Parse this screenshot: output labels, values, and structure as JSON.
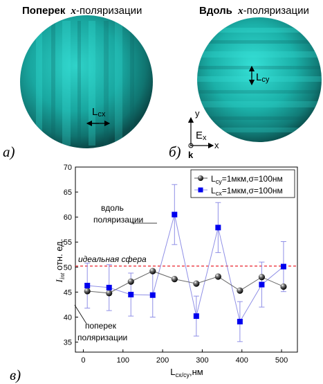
{
  "panel_a": {
    "title_bold": "Поперек",
    "title_var": "x",
    "title_rest": "-поляризации",
    "scale_label": "L",
    "scale_sub": "cx",
    "panel_label": "а)"
  },
  "panel_b": {
    "title_bold": "Вдоль",
    "title_var": "x",
    "title_rest": "-поляризации",
    "scale_label": "L",
    "scale_sub": "cy",
    "panel_label": "б)",
    "axes": {
      "y": "y",
      "x": "x",
      "k": "k",
      "E": "E",
      "E_sub": "x"
    }
  },
  "colors": {
    "sphere_dark": "#0b4a49",
    "sphere_mid": "#14908c",
    "sphere_light": "#2ee0d6",
    "series_black": "#000000",
    "series_blue": "#0000ee",
    "blue_line": "#8f8fe6",
    "ideal_line": "#e8212a"
  },
  "chart_data": {
    "type": "scatter",
    "panel_label": "в)",
    "xlabel_main": "L",
    "xlabel_sub": "cx/cy",
    "xlabel_unit": ",нм",
    "ylabel_var": "I",
    "ylabel_sub": "int",
    "ylabel_rest": " отн. ед.",
    "xlim": [
      -20,
      540
    ],
    "ylim": [
      33,
      70
    ],
    "xticks": [
      0,
      100,
      200,
      300,
      400,
      500
    ],
    "yticks": [
      35,
      40,
      45,
      50,
      55,
      60,
      65,
      70
    ],
    "grid": false,
    "legend_position": "top-right",
    "series": [
      {
        "name_main": "L",
        "name_sub": "cy",
        "name_rest": "=1мкм,σ=100нм",
        "marker": "sphere",
        "color": "#000000",
        "x": [
          10,
          65,
          120,
          175,
          230,
          285,
          340,
          395,
          450,
          505
        ],
        "y": [
          45.2,
          44.8,
          47.1,
          49.2,
          47.6,
          46.7,
          48.1,
          45.3,
          48.0,
          46.1
        ],
        "err": [
          0,
          0,
          0,
          0,
          0,
          0,
          0,
          0,
          0,
          0
        ]
      },
      {
        "name_main": "L",
        "name_sub": "cx",
        "name_rest": "=1мкм,σ=100нм",
        "marker": "square",
        "color": "#0000ee",
        "x": [
          10,
          65,
          120,
          175,
          230,
          285,
          340,
          395,
          450,
          505
        ],
        "y": [
          46.3,
          45.9,
          44.5,
          44.4,
          60.5,
          40.2,
          57.9,
          39.1,
          46.5,
          50.1
        ],
        "err": [
          4.5,
          4.6,
          4.3,
          4.4,
          6.0,
          4.0,
          5.0,
          4.0,
          4.5,
          5.0
        ]
      }
    ],
    "reference_line": {
      "y": 50.2,
      "label": "идеальная сфера"
    },
    "annotations": [
      {
        "id": "along",
        "lines": [
          "вдоль",
          "поляризации"
        ]
      },
      {
        "id": "across",
        "lines": [
          "поперек",
          "поляризации"
        ]
      }
    ]
  }
}
